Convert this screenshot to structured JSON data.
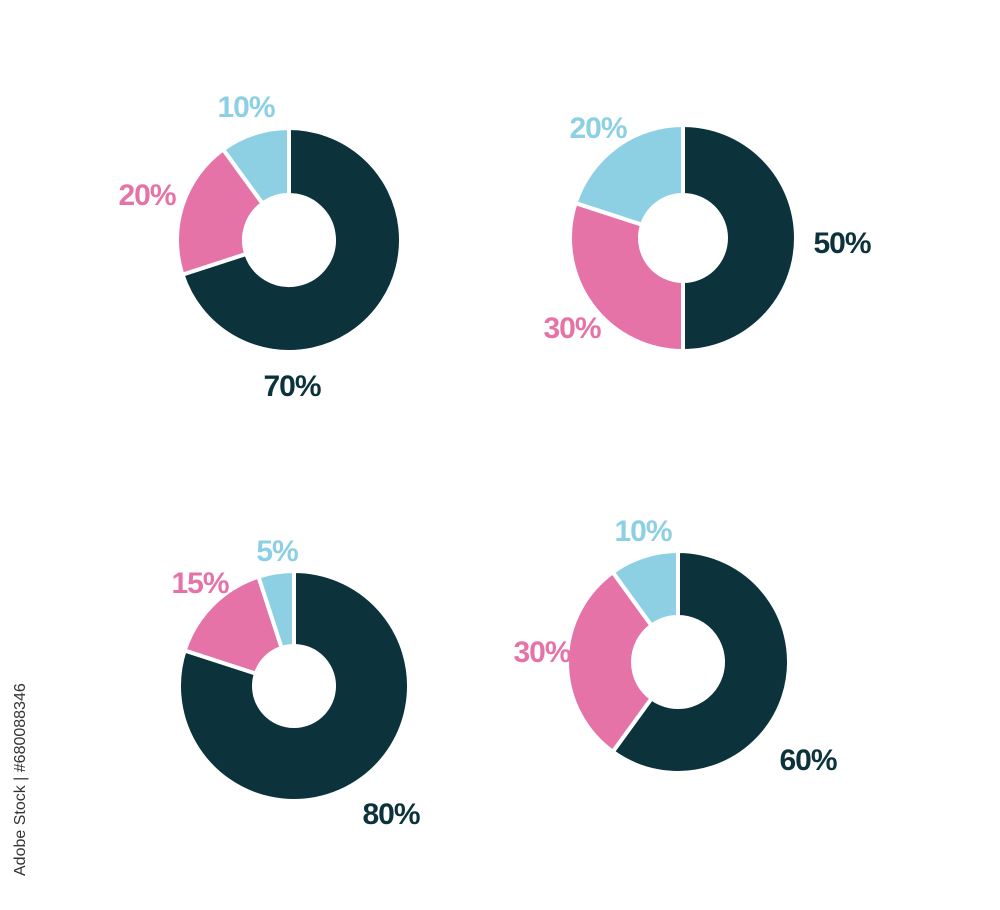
{
  "colors": {
    "dark": "#0c323b",
    "pink": "#e573a8",
    "blue": "#8dd0e4",
    "background": "#ffffff"
  },
  "stock_id": "Adobe Stock | #680088346",
  "chart_data": [
    {
      "type": "pie",
      "title": "",
      "slices": [
        {
          "label": "70%",
          "value": 70,
          "color": "#0c323b"
        },
        {
          "label": "20%",
          "value": 20,
          "color": "#e573a8"
        },
        {
          "label": "10%",
          "value": 10,
          "color": "#8dd0e4"
        }
      ]
    },
    {
      "type": "pie",
      "title": "",
      "slices": [
        {
          "label": "50%",
          "value": 50,
          "color": "#0c323b"
        },
        {
          "label": "30%",
          "value": 30,
          "color": "#e573a8"
        },
        {
          "label": "20%",
          "value": 20,
          "color": "#8dd0e4"
        }
      ]
    },
    {
      "type": "pie",
      "title": "",
      "slices": [
        {
          "label": "80%",
          "value": 80,
          "color": "#0c323b"
        },
        {
          "label": "15%",
          "value": 15,
          "color": "#e573a8"
        },
        {
          "label": "5%",
          "value": 5,
          "color": "#8dd0e4"
        }
      ]
    },
    {
      "type": "pie",
      "title": "",
      "slices": [
        {
          "label": "60%",
          "value": 60,
          "color": "#0c323b"
        },
        {
          "label": "30%",
          "value": 30,
          "color": "#e573a8"
        },
        {
          "label": "10%",
          "value": 10,
          "color": "#8dd0e4"
        }
      ]
    }
  ]
}
